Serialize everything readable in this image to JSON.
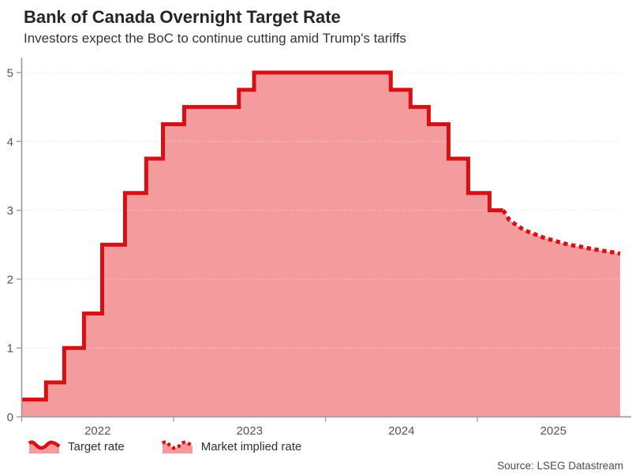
{
  "title": "Bank of Canada Overnight Target Rate",
  "subtitle": "Investors expect the BoC to continue cutting amid Trump's tariffs",
  "source": "Source: LSEG Datastream",
  "colors": {
    "line_red": "#d61015",
    "fill_pink": "#f49c9d",
    "axis_gray": "#9e9e9e",
    "grid_gray": "#e0e0e0",
    "axis_text": "#545454"
  },
  "legend": [
    {
      "label": "Target rate",
      "style": "solid"
    },
    {
      "label": "Market implied rate",
      "style": "dotted"
    }
  ],
  "chart_data": {
    "type": "area",
    "title": "Bank of Canada Overnight Target Rate",
    "xlabel": "",
    "ylabel": "",
    "ylim": [
      0,
      5
    ],
    "x_range_years": [
      2022.0,
      2025.94
    ],
    "grid": "horizontal-dotted",
    "legend_position": "bottom-left",
    "y_ticks": [
      0,
      1,
      2,
      3,
      4,
      5
    ],
    "x_ticks": [
      {
        "label": "2022",
        "year_start": 2022
      },
      {
        "label": "2023",
        "year_start": 2023
      },
      {
        "label": "2024",
        "year_start": 2024
      },
      {
        "label": "2025",
        "year_start": 2025
      }
    ],
    "series": [
      {
        "name": "Target rate",
        "style": "step-solid",
        "points_year_rate": [
          [
            2022.0,
            0.25
          ],
          [
            2022.16,
            0.5
          ],
          [
            2022.28,
            1.0
          ],
          [
            2022.41,
            1.5
          ],
          [
            2022.53,
            2.5
          ],
          [
            2022.68,
            3.25
          ],
          [
            2022.82,
            3.75
          ],
          [
            2022.93,
            4.25
          ],
          [
            2023.07,
            4.5
          ],
          [
            2023.43,
            4.75
          ],
          [
            2023.53,
            5.0
          ],
          [
            2024.43,
            4.75
          ],
          [
            2024.56,
            4.5
          ],
          [
            2024.68,
            4.25
          ],
          [
            2024.81,
            3.75
          ],
          [
            2024.94,
            3.25
          ],
          [
            2025.08,
            3.0
          ]
        ]
      },
      {
        "name": "Market implied rate",
        "style": "dotted",
        "points_year_rate": [
          [
            2025.17,
            3.0
          ],
          [
            2025.21,
            2.86
          ],
          [
            2025.26,
            2.78
          ],
          [
            2025.31,
            2.71
          ],
          [
            2025.38,
            2.65
          ],
          [
            2025.44,
            2.6
          ],
          [
            2025.52,
            2.55
          ],
          [
            2025.6,
            2.5
          ],
          [
            2025.68,
            2.47
          ],
          [
            2025.75,
            2.44
          ],
          [
            2025.83,
            2.41
          ],
          [
            2025.89,
            2.39
          ],
          [
            2025.94,
            2.37
          ]
        ]
      }
    ]
  }
}
